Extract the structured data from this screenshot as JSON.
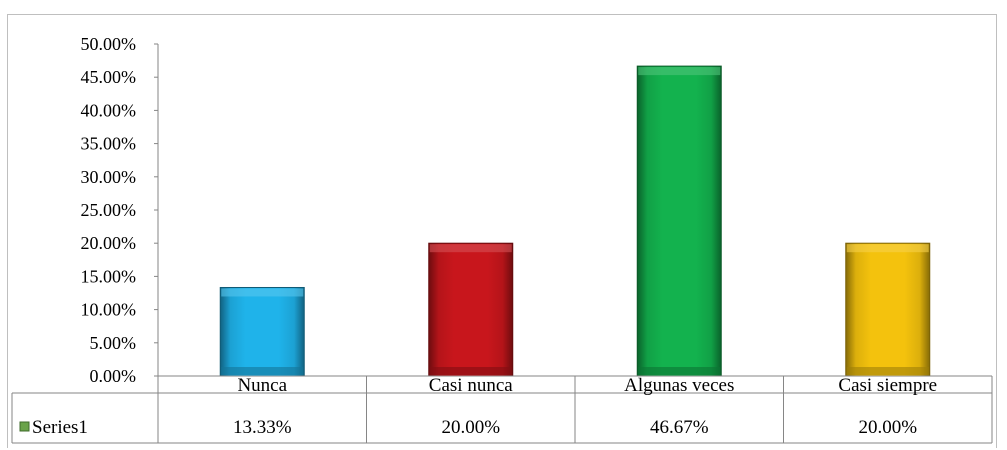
{
  "chart_data": {
    "type": "bar",
    "categories": [
      "Nunca",
      "Casi nunca",
      "Algunas veces",
      "Casi siempre"
    ],
    "series": [
      {
        "name": "Series1",
        "values": [
          13.33,
          20.0,
          46.67,
          20.0
        ],
        "value_labels": [
          "13.33%",
          "20.00%",
          "46.67%",
          "20.00%"
        ]
      }
    ],
    "bar_colors": [
      "#1fb3ea",
      "#c8161c",
      "#13b24e",
      "#f4c20d"
    ],
    "legend_marker_color": "#6aa34a",
    "ylim": [
      0,
      50
    ],
    "yticks": [
      0,
      5,
      10,
      15,
      20,
      25,
      30,
      35,
      40,
      45,
      50
    ],
    "ytick_labels": [
      "0.00%",
      "5.00%",
      "10.00%",
      "15.00%",
      "20.00%",
      "25.00%",
      "30.00%",
      "35.00%",
      "40.00%",
      "45.00%",
      "50.00%"
    ],
    "data_table": true,
    "grid": false
  }
}
